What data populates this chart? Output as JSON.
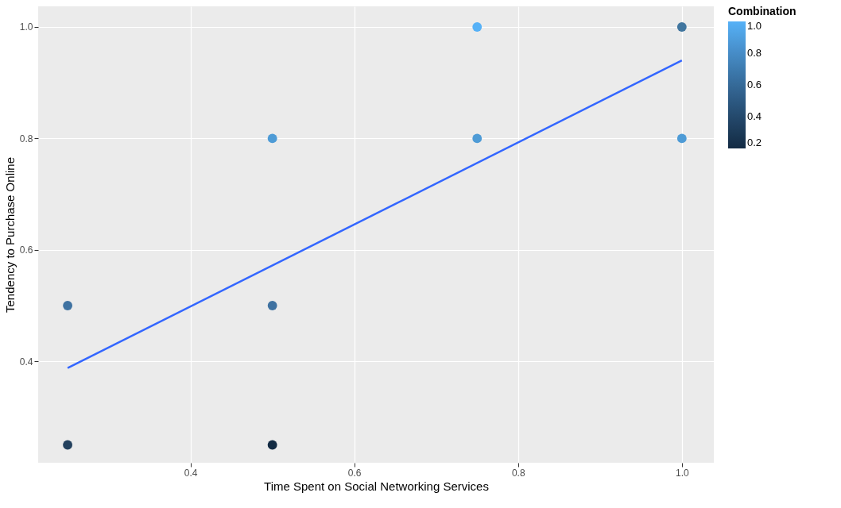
{
  "chart_data": {
    "type": "scatter",
    "xlabel": "Time Spent on Social Networking Services",
    "ylabel": "Tendency to Purchase Online",
    "legend_title": "Combination",
    "x": [
      0.25,
      0.25,
      0.5,
      0.5,
      0.5,
      0.75,
      0.75,
      1.0,
      1.0
    ],
    "values": [
      0.5,
      0.25,
      0.8,
      0.5,
      0.25,
      1.0,
      0.8,
      1.0,
      0.8
    ],
    "cvalues": [
      0.67,
      0.35,
      0.9,
      0.67,
      0.2,
      1.0,
      0.9,
      0.68,
      0.9
    ],
    "colors": [
      "#3f72a1",
      "#23415e",
      "#4e9bd6",
      "#3f72a1",
      "#132b43",
      "#56b1f7",
      "#4e9bd6",
      "#41769f",
      "#4e9bd6"
    ],
    "clim": [
      0.2,
      1.0
    ],
    "cticks": [
      0.2,
      0.4,
      0.6,
      0.8,
      {
        "value": 1.0,
        "label": "1.0"
      }
    ],
    "series": [
      {
        "type": "line",
        "x": [
          0.25,
          1.0
        ],
        "values": [
          0.388,
          0.94
        ],
        "color": "#3366ff",
        "marker": "none"
      }
    ],
    "xlim": [
      0.214,
      1.039
    ],
    "ylim": [
      0.218,
      1.037
    ],
    "xticks": [
      0.4,
      0.6,
      0.8,
      {
        "value": 1.0,
        "label": "1.0"
      }
    ],
    "yticks": [
      0.4,
      0.6,
      0.8,
      {
        "value": 1.0,
        "label": "1.0"
      }
    ],
    "grid": true,
    "marker": "circle"
  }
}
